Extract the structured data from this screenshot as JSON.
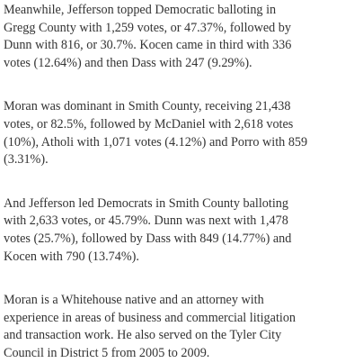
{
  "paragraphs": [
    {
      "lines": [
        "Meanwhile, Jefferson topped Democratic balloting in",
        "Gregg County with 1,259 votes, or 47.37%, followed by",
        "Dunn with 816, or 30.7%. Kocen came in third with 336",
        "votes (12.64%) and then Dass with 247 (9.29%)."
      ]
    },
    {
      "lines": [
        "Moran was dominant in Smith County, receiving 21,438",
        "votes, or 82.5%, followed by McDaniel with 2,618 votes",
        "(10%), Atholi with 1,071 votes (4.12%) and Porro with 859",
        "(3.31%)."
      ]
    },
    {
      "lines": [
        "And Jefferson led Democrats in Smith County balloting",
        "with 2,633 votes, or 45.79%. Dunn was next with 1,478",
        "votes (25.7%), followed by Dass with 849 (14.77%) and",
        "Kocen with 790 (13.74%)."
      ]
    },
    {
      "lines": [
        "Moran is a Whitehouse native and an attorney with",
        "experience in areas of business and commercial litigation",
        "and transaction work. He also served on the Tyler City",
        "Council in District 5 from 2005 to 2009."
      ]
    }
  ]
}
